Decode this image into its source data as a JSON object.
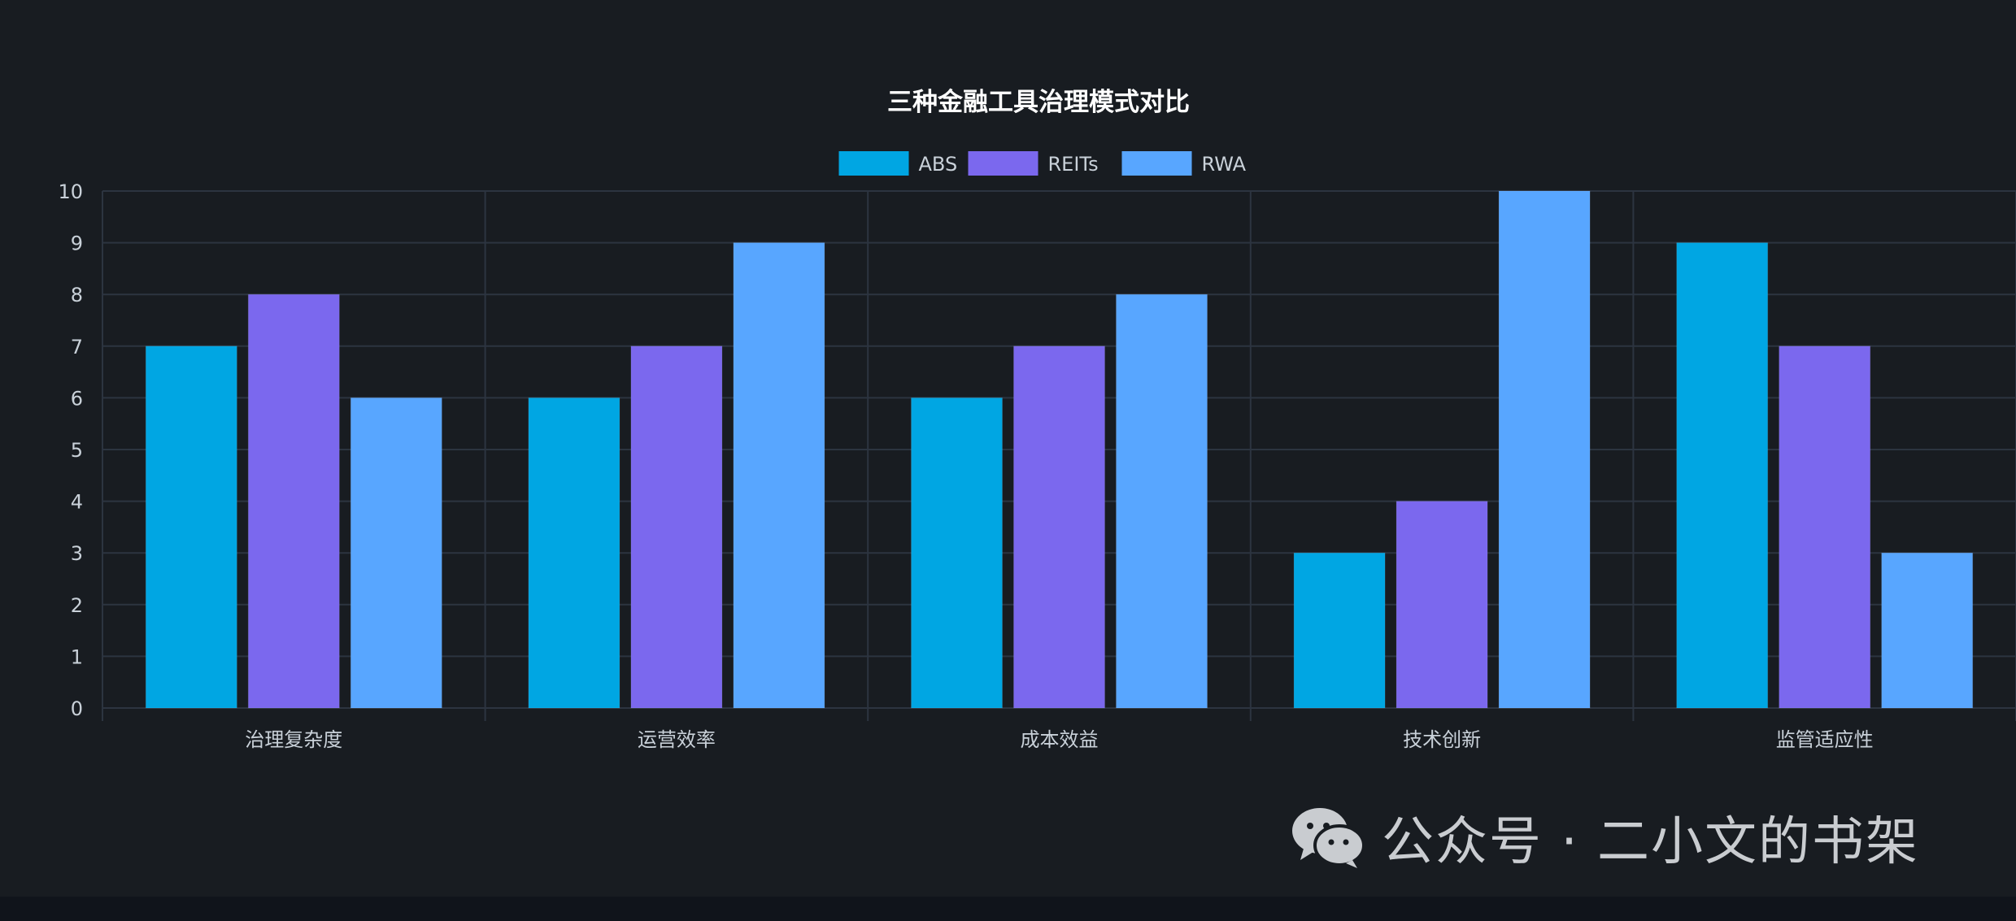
{
  "chart_data": {
    "type": "bar",
    "title": "三种金融工具治理模式对比",
    "categories": [
      "治理复杂度",
      "运营效率",
      "成本效益",
      "技术创新",
      "监管适应性"
    ],
    "series": [
      {
        "name": "ABS",
        "values": [
          7,
          6,
          6,
          3,
          9
        ]
      },
      {
        "name": "REITs",
        "values": [
          8,
          7,
          7,
          4,
          7
        ]
      },
      {
        "name": "RWA",
        "values": [
          6,
          9,
          8,
          10,
          3
        ]
      }
    ],
    "ylim": [
      0,
      10
    ],
    "yticks": [
      0,
      1,
      2,
      3,
      4,
      5,
      6,
      7,
      8,
      9,
      10
    ],
    "xlabel": "",
    "ylabel": "",
    "grid": true,
    "legend_position": "top",
    "colors": {
      "ABS": "#00a6e3",
      "REITs": "#7b68ee",
      "RWA": "#58a6ff",
      "background": "#181c21",
      "grid": "#2c3440",
      "text": "#c9d1d9",
      "title": "#ffffff"
    }
  },
  "watermark": {
    "icon": "wechat-icon",
    "text": "公众号 · 二小文的书架"
  }
}
